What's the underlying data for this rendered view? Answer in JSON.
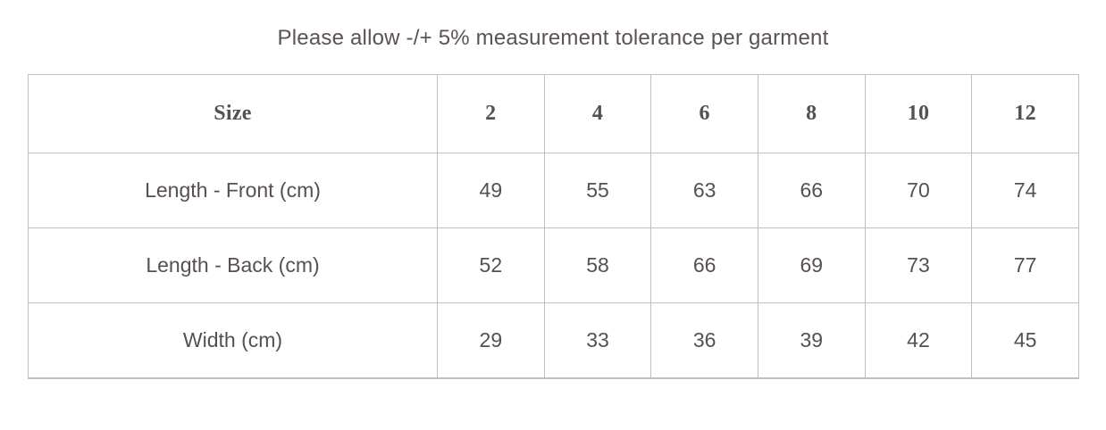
{
  "title": "Please allow -/+ 5% measurement tolerance per garment",
  "size_chart": {
    "header": [
      "Size",
      "2",
      "4",
      "6",
      "8",
      "10",
      "12"
    ],
    "rows": [
      {
        "label": "Length - Front (cm)",
        "values": [
          "49",
          "55",
          "63",
          "66",
          "70",
          "74"
        ]
      },
      {
        "label": "Length - Back (cm)",
        "values": [
          "52",
          "58",
          "66",
          "69",
          "73",
          "77"
        ]
      },
      {
        "label": "Width (cm)",
        "values": [
          "29",
          "33",
          "36",
          "39",
          "42",
          "45"
        ]
      }
    ]
  },
  "chart_data": {
    "type": "table",
    "title": "Please allow -/+ 5% measurement tolerance per garment",
    "columns": [
      "Size",
      "2",
      "4",
      "6",
      "8",
      "10",
      "12"
    ],
    "rows": [
      [
        "Length - Front (cm)",
        49,
        55,
        63,
        66,
        70,
        74
      ],
      [
        "Length - Back (cm)",
        52,
        58,
        66,
        69,
        73,
        77
      ],
      [
        "Width (cm)",
        29,
        33,
        36,
        39,
        42,
        45
      ]
    ]
  },
  "colors": {
    "text": "#565050",
    "title_text": "#5a5352",
    "border": "#bcc2c2",
    "background": "#ffffff"
  }
}
